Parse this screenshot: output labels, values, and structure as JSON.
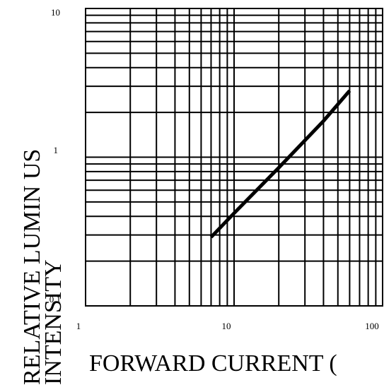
{
  "chart_data": {
    "type": "line",
    "title": "",
    "xlabel": "FORWARD CURRENT (",
    "ylabel_line1": "RELATIVE LUMIN US",
    "ylabel_line2": "INTENSITY",
    "x_scale": "log",
    "y_scale": "log",
    "xlim": [
      1,
      100
    ],
    "ylim": [
      0.1,
      10
    ],
    "grid": true,
    "x_tick_labels": [
      "1",
      "10",
      "100"
    ],
    "y_tick_labels": [
      "0.1",
      "1",
      "10"
    ],
    "series": [
      {
        "x": [
          7,
          10,
          20,
          40,
          60
        ],
        "y": [
          0.29,
          0.42,
          0.85,
          1.75,
          2.8
        ]
      }
    ]
  }
}
